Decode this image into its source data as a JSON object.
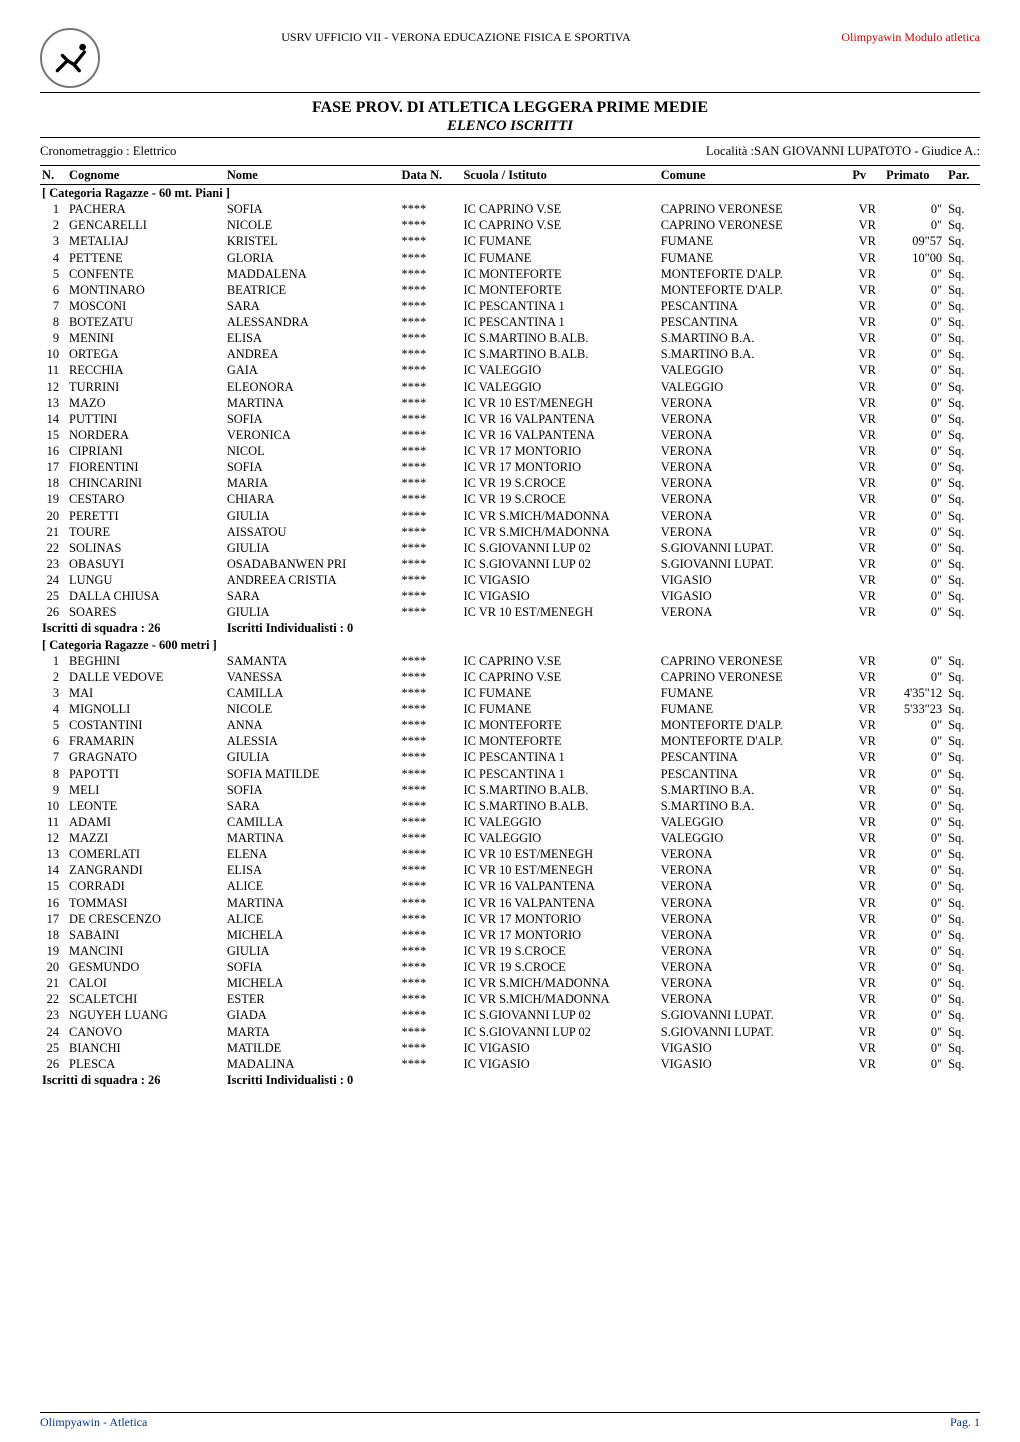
{
  "top": {
    "center_text": "USRV UFFICIO VII - VERONA  EDUCAZIONE FISICA E SPORTIVA",
    "right_text": "Olimpyawin Modulo atletica",
    "logo_name": "runner-logo"
  },
  "header": {
    "title": "FASE PROV. DI ATLETICA LEGGERA PRIME MEDIE",
    "subtitle": "ELENCO ISCRITTI",
    "left_meta": "Cronometraggio : Elettrico",
    "right_meta": "Località :SAN GIOVANNI LUPATOTO - Giudice A.:"
  },
  "columns": {
    "n": "N.",
    "cognome": "Cognome",
    "nome": "Nome",
    "data_n": "Data N.",
    "scuola": "Scuola / Istituto",
    "comune": "Comune",
    "pv": "Pv",
    "primato": "Primato",
    "par": "Par."
  },
  "categories": [
    {
      "label": "[ Categoria Ragazze - 60 mt. Piani ]",
      "summary_left": "Iscritti di squadra : 26",
      "summary_right": "Iscritti Individualisti :  0",
      "rows": [
        {
          "n": "1",
          "cog": "PACHERA",
          "nom": "SOFIA",
          "dat": "****",
          "sc": "IC CAPRINO V.SE",
          "com": "CAPRINO VERONESE",
          "pv": "VR",
          "pr": "0\"",
          "par": "Sq."
        },
        {
          "n": "2",
          "cog": "GENCARELLI",
          "nom": "NICOLE",
          "dat": "****",
          "sc": "IC CAPRINO V.SE",
          "com": "CAPRINO VERONESE",
          "pv": "VR",
          "pr": "0\"",
          "par": "Sq."
        },
        {
          "n": "3",
          "cog": "METALIAJ",
          "nom": "KRISTEL",
          "dat": "****",
          "sc": "IC FUMANE",
          "com": "FUMANE",
          "pv": "VR",
          "pr": "09\"57",
          "par": "Sq."
        },
        {
          "n": "4",
          "cog": "PETTENE",
          "nom": "GLORIA",
          "dat": "****",
          "sc": "IC FUMANE",
          "com": "FUMANE",
          "pv": "VR",
          "pr": "10\"00",
          "par": "Sq."
        },
        {
          "n": "5",
          "cog": "CONFENTE",
          "nom": "MADDALENA",
          "dat": "****",
          "sc": "IC MONTEFORTE",
          "com": "MONTEFORTE D'ALP.",
          "pv": "VR",
          "pr": "0\"",
          "par": "Sq."
        },
        {
          "n": "6",
          "cog": "MONTINARO",
          "nom": "BEATRICE",
          "dat": "****",
          "sc": "IC MONTEFORTE",
          "com": "MONTEFORTE D'ALP.",
          "pv": "VR",
          "pr": "0\"",
          "par": "Sq."
        },
        {
          "n": "7",
          "cog": "MOSCONI",
          "nom": "SARA",
          "dat": "****",
          "sc": "IC PESCANTINA 1",
          "com": "PESCANTINA",
          "pv": "VR",
          "pr": "0\"",
          "par": "Sq."
        },
        {
          "n": "8",
          "cog": "BOTEZATU",
          "nom": "ALESSANDRA",
          "dat": "****",
          "sc": "IC PESCANTINA 1",
          "com": "PESCANTINA",
          "pv": "VR",
          "pr": "0\"",
          "par": "Sq."
        },
        {
          "n": "9",
          "cog": "MENINI",
          "nom": "ELISA",
          "dat": "****",
          "sc": "IC S.MARTINO B.ALB.",
          "com": "S.MARTINO B.A.",
          "pv": "VR",
          "pr": "0\"",
          "par": "Sq."
        },
        {
          "n": "10",
          "cog": "ORTEGA",
          "nom": "ANDREA",
          "dat": "****",
          "sc": "IC S.MARTINO B.ALB.",
          "com": "S.MARTINO B.A.",
          "pv": "VR",
          "pr": "0\"",
          "par": "Sq."
        },
        {
          "n": "11",
          "cog": "RECCHIA",
          "nom": "GAIA",
          "dat": "****",
          "sc": "IC  VALEGGIO",
          "com": "VALEGGIO",
          "pv": "VR",
          "pr": "0\"",
          "par": "Sq."
        },
        {
          "n": "12",
          "cog": "TURRINI",
          "nom": "ELEONORA",
          "dat": "****",
          "sc": "IC  VALEGGIO",
          "com": "VALEGGIO",
          "pv": "VR",
          "pr": "0\"",
          "par": "Sq."
        },
        {
          "n": "13",
          "cog": "MAZO",
          "nom": "MARTINA",
          "dat": "****",
          "sc": "IC VR 10  EST/MENEGH",
          "com": "VERONA",
          "pv": "VR",
          "pr": "0\"",
          "par": "Sq."
        },
        {
          "n": "14",
          "cog": "PUTTINI",
          "nom": "SOFIA",
          "dat": "****",
          "sc": "IC VR 16 VALPANTENA",
          "com": "VERONA",
          "pv": "VR",
          "pr": "0\"",
          "par": "Sq."
        },
        {
          "n": "15",
          "cog": "NORDERA",
          "nom": "VERONICA",
          "dat": "****",
          "sc": "IC VR 16 VALPANTENA",
          "com": "VERONA",
          "pv": "VR",
          "pr": "0\"",
          "par": "Sq."
        },
        {
          "n": "16",
          "cog": "CIPRIANI",
          "nom": "NICOL",
          "dat": "****",
          "sc": "IC VR 17 MONTORIO",
          "com": "VERONA",
          "pv": "VR",
          "pr": "0\"",
          "par": "Sq."
        },
        {
          "n": "17",
          "cog": "FIORENTINI",
          "nom": "SOFIA",
          "dat": "****",
          "sc": "IC VR 17 MONTORIO",
          "com": "VERONA",
          "pv": "VR",
          "pr": "0\"",
          "par": "Sq."
        },
        {
          "n": "18",
          "cog": "CHINCARINI",
          "nom": "MARIA",
          "dat": "****",
          "sc": "IC VR 19 S.CROCE",
          "com": "VERONA",
          "pv": "VR",
          "pr": "0\"",
          "par": "Sq."
        },
        {
          "n": "19",
          "cog": "CESTARO",
          "nom": "CHIARA",
          "dat": "****",
          "sc": "IC VR 19 S.CROCE",
          "com": "VERONA",
          "pv": "VR",
          "pr": "0\"",
          "par": "Sq."
        },
        {
          "n": "20",
          "cog": "PERETTI",
          "nom": "GIULIA",
          "dat": "****",
          "sc": "IC VR S.MICH/MADONNA",
          "com": "VERONA",
          "pv": "VR",
          "pr": "0\"",
          "par": "Sq."
        },
        {
          "n": "21",
          "cog": "TOURE",
          "nom": "AISSATOU",
          "dat": "****",
          "sc": "IC VR S.MICH/MADONNA",
          "com": "VERONA",
          "pv": "VR",
          "pr": "0\"",
          "par": "Sq."
        },
        {
          "n": "22",
          "cog": "SOLINAS",
          "nom": "GIULIA",
          "dat": "****",
          "sc": "IC S.GIOVANNI LUP 02",
          "com": "S.GIOVANNI LUPAT.",
          "pv": "VR",
          "pr": "0\"",
          "par": "Sq."
        },
        {
          "n": "23",
          "cog": "OBASUYI",
          "nom": "OSADABANWEN PRI",
          "dat": "****",
          "sc": "IC S.GIOVANNI LUP 02",
          "com": "S.GIOVANNI LUPAT.",
          "pv": "VR",
          "pr": "0\"",
          "par": "Sq."
        },
        {
          "n": "24",
          "cog": "LUNGU",
          "nom": "ANDREEA CRISTIA",
          "dat": "****",
          "sc": "IC VIGASIO",
          "com": "VIGASIO",
          "pv": "VR",
          "pr": "0\"",
          "par": "Sq."
        },
        {
          "n": "25",
          "cog": "DALLA CHIUSA",
          "nom": "SARA",
          "dat": "****",
          "sc": "IC VIGASIO",
          "com": "VIGASIO",
          "pv": "VR",
          "pr": "0\"",
          "par": "Sq."
        },
        {
          "n": "26",
          "cog": "SOARES",
          "nom": "GIULIA",
          "dat": "****",
          "sc": "IC VR 10  EST/MENEGH",
          "com": "VERONA",
          "pv": "VR",
          "pr": "0\"",
          "par": "Sq."
        }
      ]
    },
    {
      "label": "[ Categoria Ragazze - 600 metri ]",
      "summary_left": "Iscritti di squadra : 26",
      "summary_right": "Iscritti Individualisti :  0",
      "rows": [
        {
          "n": "1",
          "cog": "BEGHINI",
          "nom": "SAMANTA",
          "dat": "****",
          "sc": "IC CAPRINO V.SE",
          "com": "CAPRINO VERONESE",
          "pv": "VR",
          "pr": "0\"",
          "par": "Sq."
        },
        {
          "n": "2",
          "cog": "DALLE VEDOVE",
          "nom": "VANESSA",
          "dat": "****",
          "sc": "IC CAPRINO V.SE",
          "com": "CAPRINO VERONESE",
          "pv": "VR",
          "pr": "0\"",
          "par": "Sq."
        },
        {
          "n": "3",
          "cog": "MAI",
          "nom": "CAMILLA",
          "dat": "****",
          "sc": "IC FUMANE",
          "com": "FUMANE",
          "pv": "VR",
          "pr": "4'35\"12",
          "par": "Sq."
        },
        {
          "n": "4",
          "cog": "MIGNOLLI",
          "nom": "NICOLE",
          "dat": "****",
          "sc": "IC FUMANE",
          "com": "FUMANE",
          "pv": "VR",
          "pr": "5'33\"23",
          "par": "Sq."
        },
        {
          "n": "5",
          "cog": "COSTANTINI",
          "nom": "ANNA",
          "dat": "****",
          "sc": "IC MONTEFORTE",
          "com": "MONTEFORTE D'ALP.",
          "pv": "VR",
          "pr": "0\"",
          "par": "Sq."
        },
        {
          "n": "6",
          "cog": "FRAMARIN",
          "nom": "ALESSIA",
          "dat": "****",
          "sc": "IC MONTEFORTE",
          "com": "MONTEFORTE D'ALP.",
          "pv": "VR",
          "pr": "0\"",
          "par": "Sq."
        },
        {
          "n": "7",
          "cog": "GRAGNATO",
          "nom": "GIULIA",
          "dat": "****",
          "sc": "IC PESCANTINA 1",
          "com": "PESCANTINA",
          "pv": "VR",
          "pr": "0\"",
          "par": "Sq."
        },
        {
          "n": "8",
          "cog": "PAPOTTI",
          "nom": "SOFIA MATILDE",
          "dat": "****",
          "sc": "IC PESCANTINA 1",
          "com": "PESCANTINA",
          "pv": "VR",
          "pr": "0\"",
          "par": "Sq."
        },
        {
          "n": "9",
          "cog": "MELI",
          "nom": "SOFIA",
          "dat": "****",
          "sc": "IC S.MARTINO B.ALB.",
          "com": "S.MARTINO B.A.",
          "pv": "VR",
          "pr": "0\"",
          "par": "Sq."
        },
        {
          "n": "10",
          "cog": "LEONTE",
          "nom": "SARA",
          "dat": "****",
          "sc": "IC S.MARTINO B.ALB.",
          "com": "S.MARTINO B.A.",
          "pv": "VR",
          "pr": "0\"",
          "par": "Sq."
        },
        {
          "n": "11",
          "cog": "ADAMI",
          "nom": "CAMILLA",
          "dat": "****",
          "sc": "IC  VALEGGIO",
          "com": "VALEGGIO",
          "pv": "VR",
          "pr": "0\"",
          "par": "Sq."
        },
        {
          "n": "12",
          "cog": "MAZZI",
          "nom": "MARTINA",
          "dat": "****",
          "sc": "IC  VALEGGIO",
          "com": "VALEGGIO",
          "pv": "VR",
          "pr": "0\"",
          "par": "Sq."
        },
        {
          "n": "13",
          "cog": "COMERLATI",
          "nom": "ELENA",
          "dat": "****",
          "sc": "IC VR 10  EST/MENEGH",
          "com": "VERONA",
          "pv": "VR",
          "pr": "0\"",
          "par": "Sq."
        },
        {
          "n": "14",
          "cog": "ZANGRANDI",
          "nom": "ELISA",
          "dat": "****",
          "sc": "IC VR 10  EST/MENEGH",
          "com": "VERONA",
          "pv": "VR",
          "pr": "0\"",
          "par": "Sq."
        },
        {
          "n": "15",
          "cog": "CORRADI",
          "nom": "ALICE",
          "dat": "****",
          "sc": "IC VR 16 VALPANTENA",
          "com": "VERONA",
          "pv": "VR",
          "pr": "0\"",
          "par": "Sq."
        },
        {
          "n": "16",
          "cog": "TOMMASI",
          "nom": "MARTINA",
          "dat": "****",
          "sc": "IC VR 16 VALPANTENA",
          "com": "VERONA",
          "pv": "VR",
          "pr": "0\"",
          "par": "Sq."
        },
        {
          "n": "17",
          "cog": "DE CRESCENZO",
          "nom": "ALICE",
          "dat": "****",
          "sc": "IC VR 17 MONTORIO",
          "com": "VERONA",
          "pv": "VR",
          "pr": "0\"",
          "par": "Sq."
        },
        {
          "n": "18",
          "cog": "SABAINI",
          "nom": "MICHELA",
          "dat": "****",
          "sc": "IC VR 17 MONTORIO",
          "com": "VERONA",
          "pv": "VR",
          "pr": "0\"",
          "par": "Sq."
        },
        {
          "n": "19",
          "cog": "MANCINI",
          "nom": "GIULIA",
          "dat": "****",
          "sc": "IC VR 19 S.CROCE",
          "com": "VERONA",
          "pv": "VR",
          "pr": "0\"",
          "par": "Sq."
        },
        {
          "n": "20",
          "cog": "GESMUNDO",
          "nom": "SOFIA",
          "dat": "****",
          "sc": "IC VR 19 S.CROCE",
          "com": "VERONA",
          "pv": "VR",
          "pr": "0\"",
          "par": "Sq."
        },
        {
          "n": "21",
          "cog": "CALOI",
          "nom": "MICHELA",
          "dat": "****",
          "sc": "IC VR S.MICH/MADONNA",
          "com": "VERONA",
          "pv": "VR",
          "pr": "0\"",
          "par": "Sq."
        },
        {
          "n": "22",
          "cog": "SCALETCHI",
          "nom": "ESTER",
          "dat": "****",
          "sc": "IC VR S.MICH/MADONNA",
          "com": "VERONA",
          "pv": "VR",
          "pr": "0\"",
          "par": "Sq."
        },
        {
          "n": "23",
          "cog": "NGUYEH LUANG",
          "nom": "GIADA",
          "dat": "****",
          "sc": "IC S.GIOVANNI LUP 02",
          "com": "S.GIOVANNI LUPAT.",
          "pv": "VR",
          "pr": "0\"",
          "par": "Sq."
        },
        {
          "n": "24",
          "cog": "CANOVO",
          "nom": "MARTA",
          "dat": "****",
          "sc": "IC S.GIOVANNI LUP 02",
          "com": "S.GIOVANNI LUPAT.",
          "pv": "VR",
          "pr": "0\"",
          "par": "Sq."
        },
        {
          "n": "25",
          "cog": "BIANCHI",
          "nom": "MATILDE",
          "dat": "****",
          "sc": "IC VIGASIO",
          "com": "VIGASIO",
          "pv": "VR",
          "pr": "0\"",
          "par": "Sq."
        },
        {
          "n": "26",
          "cog": "PLESCA",
          "nom": "MADALINA",
          "dat": "****",
          "sc": "IC VIGASIO",
          "com": "VIGASIO",
          "pv": "VR",
          "pr": "0\"",
          "par": "Sq."
        }
      ]
    }
  ],
  "footer": {
    "left": "Olimpyawin - Atletica",
    "right": "Pag. 1"
  },
  "colors": {
    "link_red": "#c00000",
    "footer_blue": "#003399",
    "logo_border": "#777777"
  },
  "fonts": {
    "body_family": "Times New Roman",
    "body_size_pt": 10.5,
    "small_size_pt": 9,
    "title_size_pt": 12
  }
}
